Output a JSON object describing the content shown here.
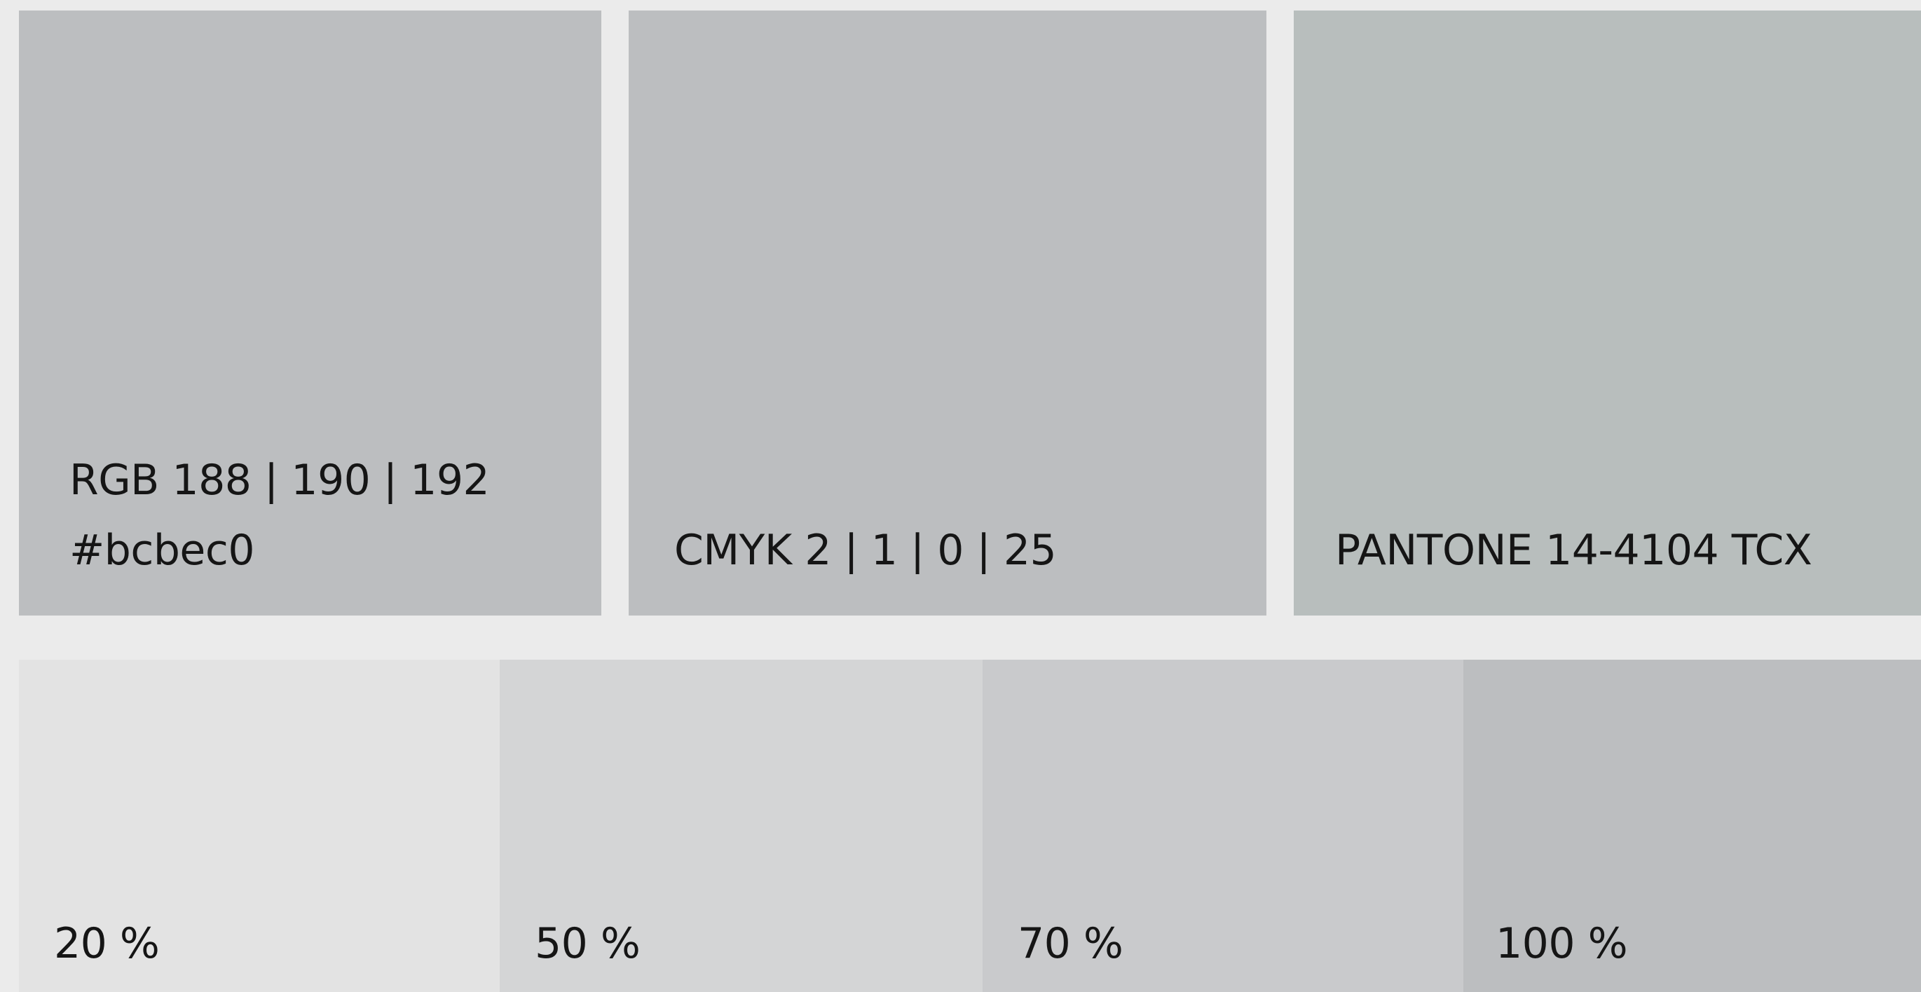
{
  "colors": {
    "background": "#ebebeb",
    "base": "#bcbec0",
    "pantone": "#b8bebd",
    "tint_20": "#e3e3e3",
    "tint_50": "#d4d5d6",
    "tint_70": "#c9cacc",
    "tint_100": "#bcbec0"
  },
  "top_row": {
    "rgb": {
      "label": "RGB 188 | 190 | 192",
      "hex": "#bcbec0"
    },
    "cmyk": {
      "label": "CMYK 2 | 1 | 0 | 25"
    },
    "pantone": {
      "label": "PANTONE  14-4104 TCX"
    }
  },
  "tints": [
    {
      "label": "20 %"
    },
    {
      "label": "50 %"
    },
    {
      "label": "70 %"
    },
    {
      "label": "100 %"
    }
  ]
}
